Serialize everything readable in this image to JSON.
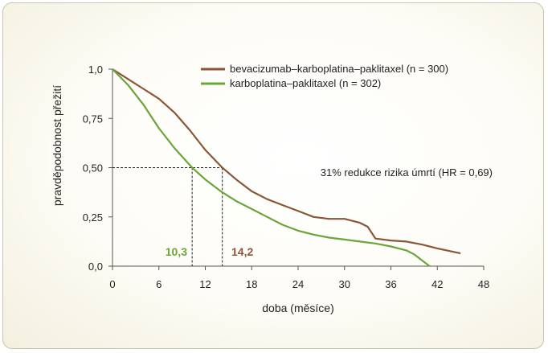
{
  "chart_data": {
    "type": "line",
    "xlabel": "doba (měsíce)",
    "ylabel": "pravděpodobnost přežití",
    "xlim": [
      0,
      48
    ],
    "ylim": [
      0,
      1.0
    ],
    "x_ticks": [
      "0",
      "6",
      "12",
      "18",
      "24",
      "30",
      "36",
      "42",
      "48"
    ],
    "y_ticks": [
      "0,0",
      "0,25",
      "0,50",
      "0,75",
      "1,0"
    ],
    "legend_position": "top-right",
    "series": [
      {
        "name": "bevacizumab–karboplatina–paklitaxel (n = 300)",
        "color": "#8a5636",
        "x": [
          0,
          2,
          4,
          6,
          8,
          10,
          12,
          14.2,
          16,
          18,
          20,
          22,
          24,
          26,
          28,
          30,
          32,
          33,
          34,
          36,
          38,
          40,
          42,
          45
        ],
        "y": [
          1.0,
          0.95,
          0.9,
          0.85,
          0.78,
          0.69,
          0.59,
          0.5,
          0.44,
          0.38,
          0.34,
          0.31,
          0.28,
          0.25,
          0.24,
          0.24,
          0.22,
          0.2,
          0.14,
          0.13,
          0.125,
          0.11,
          0.09,
          0.065
        ]
      },
      {
        "name": "karboplatina–paklitaxel (n = 302)",
        "color": "#6aa53a",
        "x": [
          0,
          2,
          4,
          6,
          8,
          10.3,
          12,
          14,
          16,
          18,
          20,
          22,
          24,
          26,
          28,
          30,
          32,
          34,
          36,
          38,
          39,
          40,
          41
        ],
        "y": [
          1.0,
          0.92,
          0.82,
          0.7,
          0.6,
          0.5,
          0.44,
          0.38,
          0.33,
          0.29,
          0.25,
          0.21,
          0.18,
          0.16,
          0.145,
          0.135,
          0.125,
          0.115,
          0.1,
          0.08,
          0.06,
          0.03,
          0.0
        ]
      }
    ],
    "annotations": {
      "median_dashed_y": 0.5,
      "median_green": {
        "x": 10.3,
        "label": "10,3",
        "color": "#6aa53a"
      },
      "median_brown": {
        "x": 14.2,
        "label": "14,2",
        "color": "#8a5636"
      },
      "hr_text": "31% redukce rizika úmrtí (HR = 0,69)"
    }
  }
}
